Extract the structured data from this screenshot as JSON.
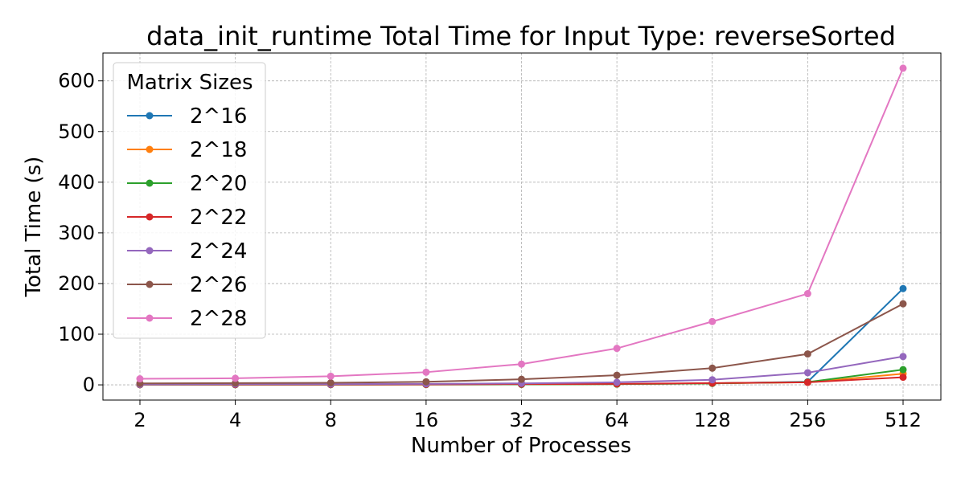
{
  "chart_data": {
    "type": "line",
    "title": "data_init_runtime Total Time for Input Type: reverseSorted",
    "xlabel": "Number of Processes",
    "ylabel": "Total Time (s)",
    "x_scale": "log2",
    "categories": [
      "2",
      "4",
      "8",
      "16",
      "32",
      "64",
      "128",
      "256",
      "512"
    ],
    "yticks": [
      "0",
      "100",
      "200",
      "300",
      "400",
      "500",
      "600"
    ],
    "ylim": [
      -30,
      655
    ],
    "grid": true,
    "legend": {
      "title": "Matrix Sizes",
      "placement": "top-left"
    },
    "series": [
      {
        "name": "2^16",
        "color": "#1f77b4",
        "values": [
          0.5,
          0.5,
          0.6,
          0.8,
          1.0,
          1.5,
          3.0,
          6.0,
          190
        ]
      },
      {
        "name": "2^18",
        "color": "#ff7f0e",
        "values": [
          0.5,
          0.5,
          0.6,
          0.8,
          1.0,
          1.5,
          3.0,
          5.0,
          22
        ]
      },
      {
        "name": "2^20",
        "color": "#2ca02c",
        "values": [
          0.5,
          0.5,
          0.6,
          0.8,
          1.0,
          1.5,
          3.0,
          5.5,
          30
        ]
      },
      {
        "name": "2^22",
        "color": "#d62728",
        "values": [
          0.6,
          0.7,
          0.8,
          1.0,
          1.5,
          2.0,
          3.5,
          5.0,
          15
        ]
      },
      {
        "name": "2^24",
        "color": "#9467bd",
        "values": [
          1.0,
          1.5,
          1.5,
          2.0,
          3.0,
          5.0,
          10,
          24,
          56
        ]
      },
      {
        "name": "2^26",
        "color": "#8c564b",
        "values": [
          3.0,
          3.5,
          4.0,
          6.0,
          11,
          19,
          33,
          61,
          160
        ]
      },
      {
        "name": "2^28",
        "color": "#e377c2",
        "values": [
          12,
          13,
          17,
          25,
          41,
          72,
          125,
          180,
          625
        ]
      }
    ]
  }
}
